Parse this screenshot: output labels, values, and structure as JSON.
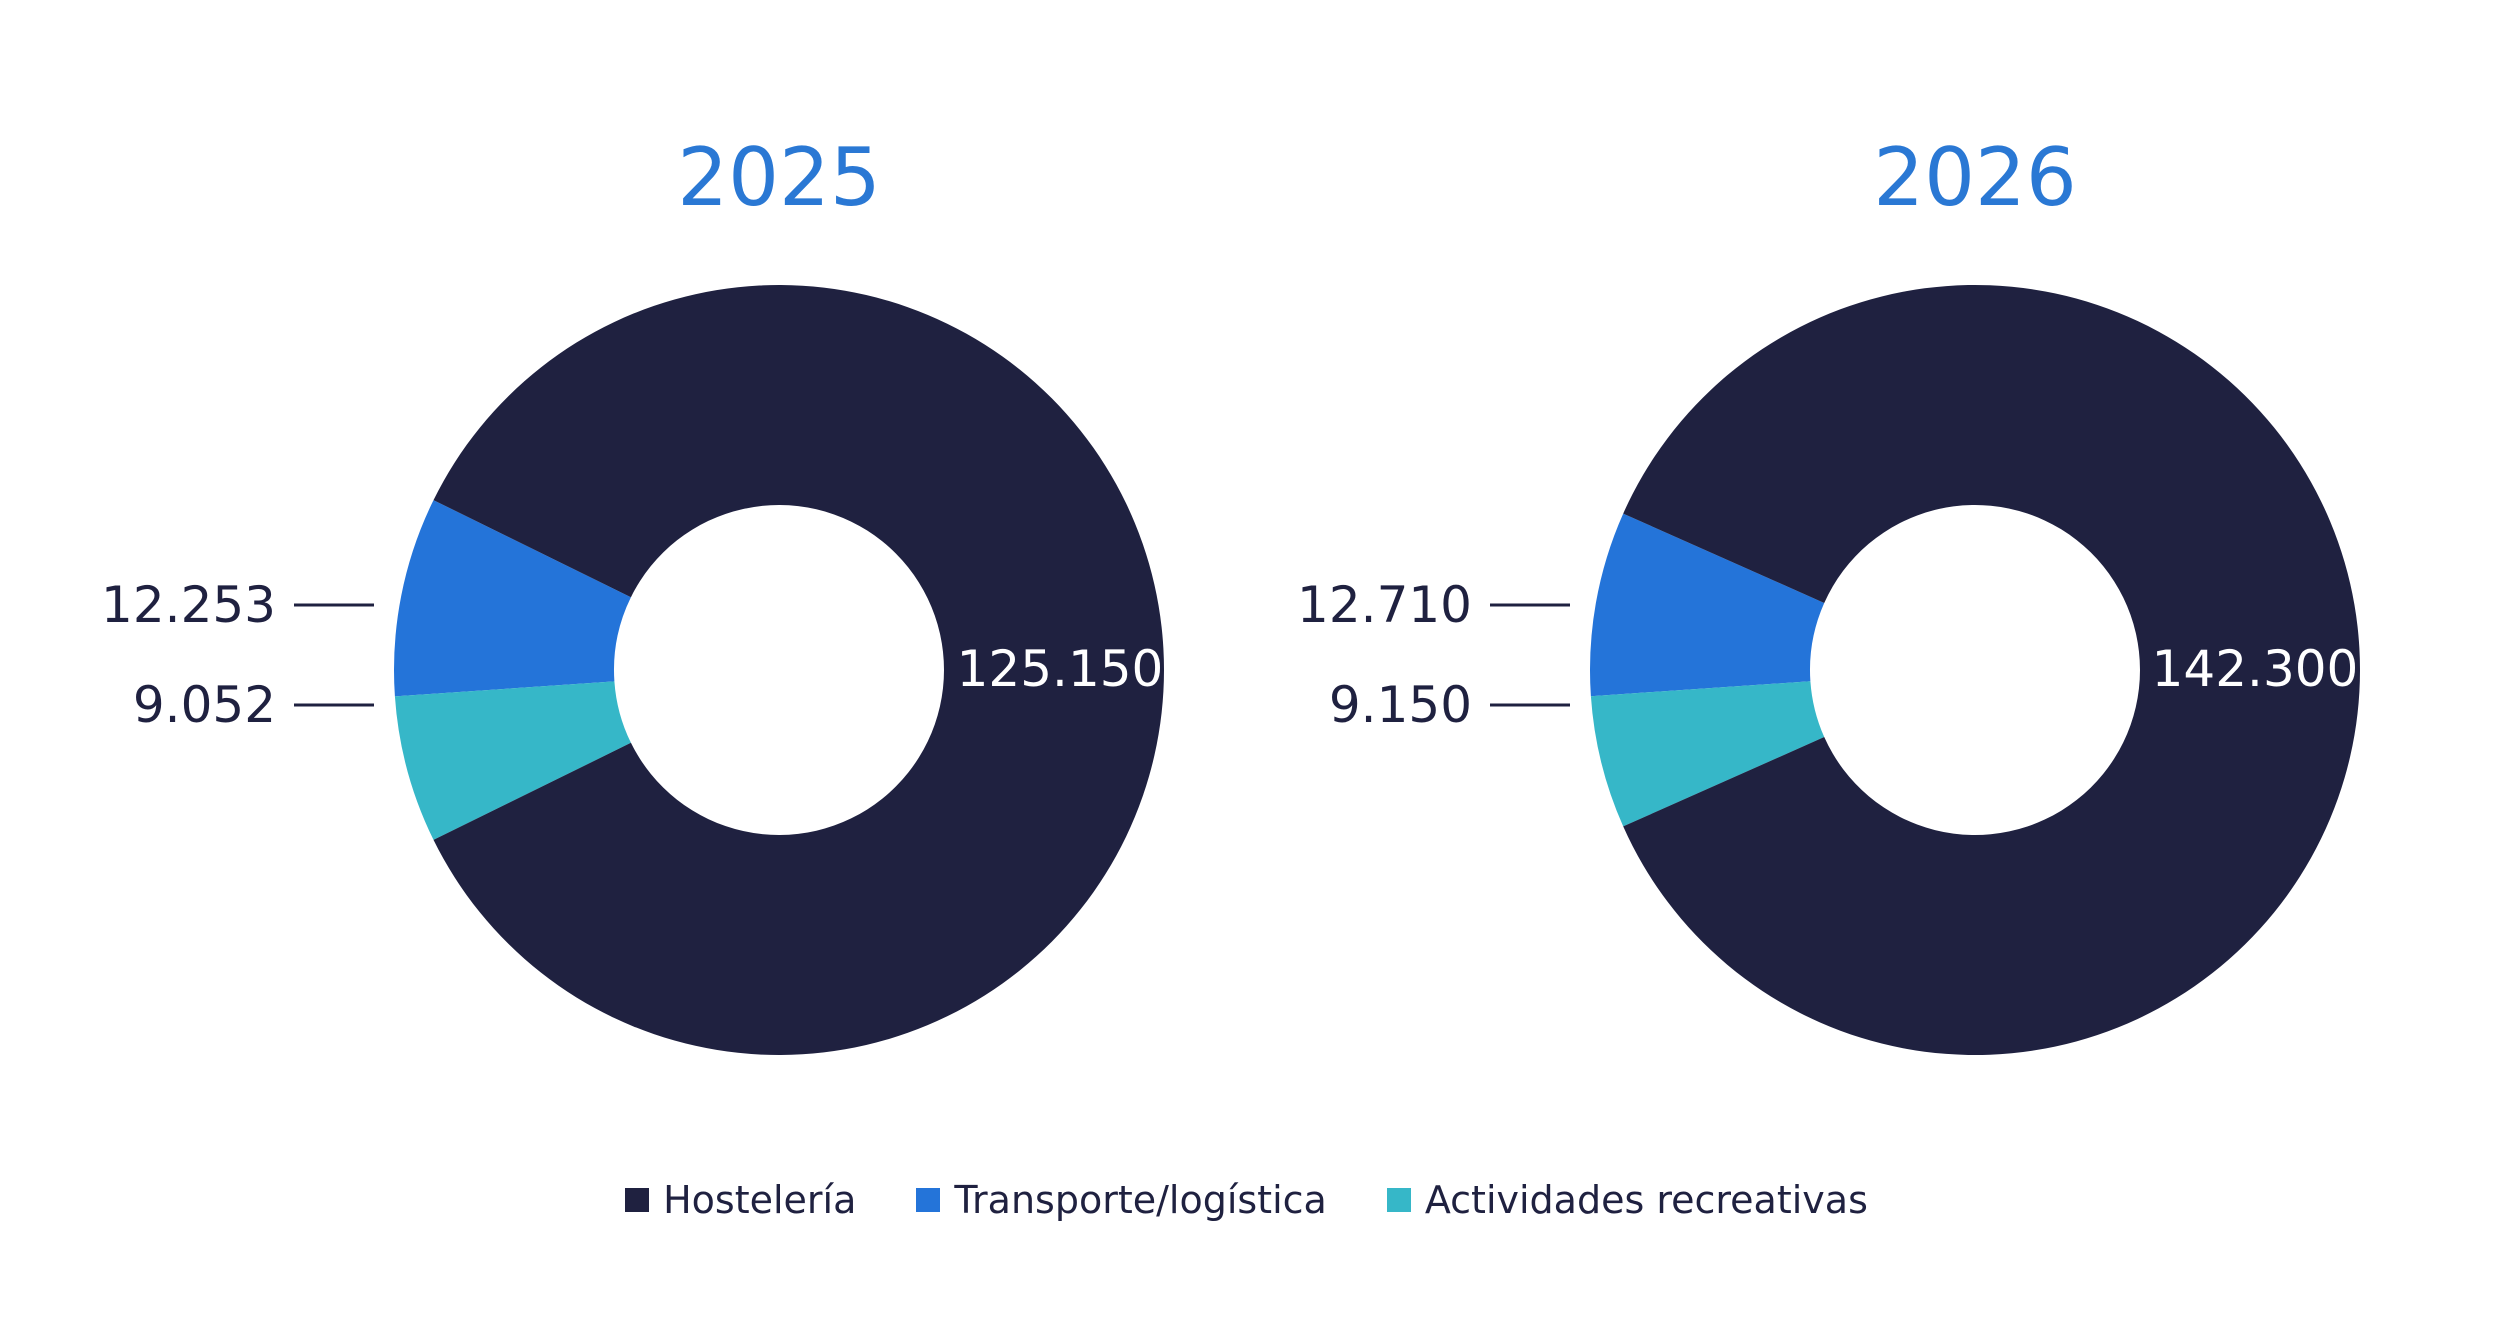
{
  "colors": {
    "Hostelería": "#1f2140",
    "Transporte/logística": "#2474d9",
    "Actividades recreativas": "#36b7c8",
    "title": "#2a78d4",
    "label": "#1f2140",
    "label_inside": "#ffffff"
  },
  "legend": {
    "items": [
      {
        "label": "Hostelería",
        "color": "#1f2140"
      },
      {
        "label": "Transporte/logística",
        "color": "#2474d9"
      },
      {
        "label": "Actividades recreativas",
        "color": "#36b7c8"
      }
    ],
    "position": "bottom-center"
  },
  "chart_data": [
    {
      "type": "pie",
      "variant": "donut",
      "title": "2025",
      "slices": [
        {
          "label": "Hostelería",
          "value": 125150,
          "display": "125.150"
        },
        {
          "label": "Transporte/logística",
          "value": 12253,
          "display": "12.253"
        },
        {
          "label": "Actividades recreativas",
          "value": 9052,
          "display": "9.052"
        }
      ]
    },
    {
      "type": "pie",
      "variant": "donut",
      "title": "2026",
      "slices": [
        {
          "label": "Hostelería",
          "value": 142300,
          "display": "142.300"
        },
        {
          "label": "Transporte/logística",
          "value": 12710,
          "display": "12.710"
        },
        {
          "label": "Actividades recreativas",
          "value": 9150,
          "display": "9.150"
        }
      ]
    }
  ]
}
